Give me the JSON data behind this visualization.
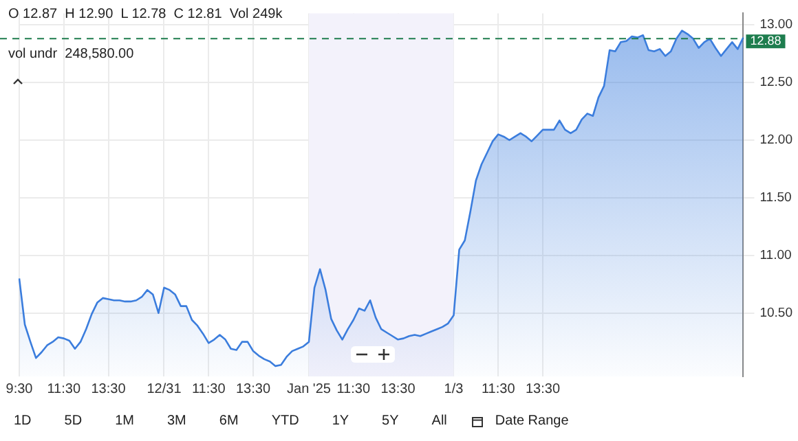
{
  "chart_data": {
    "type": "area",
    "title": "O 12.87  H 12.90  L 12.78  C 12.81  Vol 249k",
    "subtitle": "vol undr  248,580.00",
    "categories": [
      "9:30",
      null,
      null,
      null,
      null,
      null,
      null,
      null,
      "11:30",
      null,
      null,
      null,
      null,
      null,
      null,
      null,
      "13:30",
      null,
      null,
      null,
      null,
      null,
      null,
      null,
      null,
      null,
      "12/31",
      null,
      null,
      null,
      null,
      null,
      null,
      null,
      "11:30",
      null,
      null,
      null,
      null,
      null,
      null,
      null,
      "13:30",
      null,
      null,
      null,
      null,
      null,
      null,
      null,
      null,
      null,
      "Jan '25",
      null,
      null,
      null,
      null,
      null,
      null,
      null,
      "11:30",
      null,
      null,
      null,
      null,
      null,
      null,
      null,
      "13:30",
      null,
      null,
      null,
      null,
      null,
      null,
      null,
      null,
      null,
      "1/3",
      null,
      null,
      null,
      null,
      null,
      null,
      null,
      "11:30",
      null,
      null,
      null,
      null,
      null,
      null,
      null,
      "13:30",
      null,
      null,
      null,
      null,
      null,
      null,
      null,
      null,
      null,
      null,
      null,
      null,
      null,
      null,
      null,
      null,
      null,
      null,
      null,
      null,
      null,
      null,
      null,
      null,
      null,
      null,
      null,
      null,
      null,
      null,
      null,
      null,
      null,
      null,
      null,
      null
    ],
    "series": [
      {
        "color": "#3b7ddd",
        "values": [
          10.8,
          10.4,
          10.25,
          10.11,
          10.16,
          10.22,
          10.25,
          10.29,
          10.28,
          10.26,
          10.19,
          10.25,
          10.36,
          10.49,
          10.59,
          10.63,
          10.62,
          10.61,
          10.61,
          10.6,
          10.6,
          10.61,
          10.64,
          10.7,
          10.66,
          10.5,
          10.72,
          10.7,
          10.66,
          10.56,
          10.56,
          10.44,
          10.39,
          10.32,
          10.24,
          10.27,
          10.31,
          10.27,
          10.19,
          10.18,
          10.25,
          10.25,
          10.17,
          10.13,
          10.1,
          10.08,
          10.04,
          10.05,
          10.12,
          10.17,
          10.19,
          10.21,
          10.25,
          10.72,
          10.88,
          10.7,
          10.45,
          10.35,
          10.27,
          10.36,
          10.44,
          10.54,
          10.52,
          10.61,
          10.46,
          10.36,
          10.33,
          10.3,
          10.27,
          10.28,
          10.3,
          10.31,
          10.3,
          10.32,
          10.34,
          10.36,
          10.38,
          10.41,
          10.48,
          11.05,
          11.13,
          11.38,
          11.65,
          11.79,
          11.89,
          11.99,
          12.05,
          12.03,
          12.0,
          12.03,
          12.06,
          12.03,
          11.99,
          12.04,
          12.09,
          12.09,
          12.09,
          12.17,
          12.09,
          12.06,
          12.09,
          12.18,
          12.23,
          12.21,
          12.37,
          12.47,
          12.78,
          12.77,
          12.85,
          12.86,
          12.9,
          12.89,
          12.91,
          12.78,
          12.77,
          12.79,
          12.73,
          12.77,
          12.88,
          12.95,
          12.92,
          12.88,
          12.8,
          12.85,
          12.88,
          12.8,
          12.73,
          12.79,
          12.85,
          12.79,
          12.89
        ]
      }
    ],
    "ylim": [
      9.95,
      13.1
    ],
    "yticks": [
      {
        "value": 10.5,
        "label": "10.50"
      },
      {
        "value": 11,
        "label": "11.00"
      },
      {
        "value": 11.5,
        "label": "11.50"
      },
      {
        "value": 12,
        "label": "12.00"
      },
      {
        "value": 12.5,
        "label": "12.50"
      },
      {
        "value": 13,
        "label": "13.00"
      }
    ],
    "ref_lines": [
      {
        "axis": "y",
        "value": 12.88,
        "label": "12.88",
        "color": "#1e7d4e",
        "line_style": "dashed"
      }
    ],
    "bands": [
      {
        "axis": "x",
        "from": "Jan '25",
        "to": "1/3",
        "color": "#f3f2fb"
      }
    ],
    "annotations": [
      "1D",
      "5D",
      "1M",
      "3M",
      "6M",
      "YTD",
      "1Y",
      "5Y",
      "All",
      "Date Range"
    ],
    "grid": true,
    "legend": false,
    "marker": "none",
    "line_style": "solid"
  }
}
